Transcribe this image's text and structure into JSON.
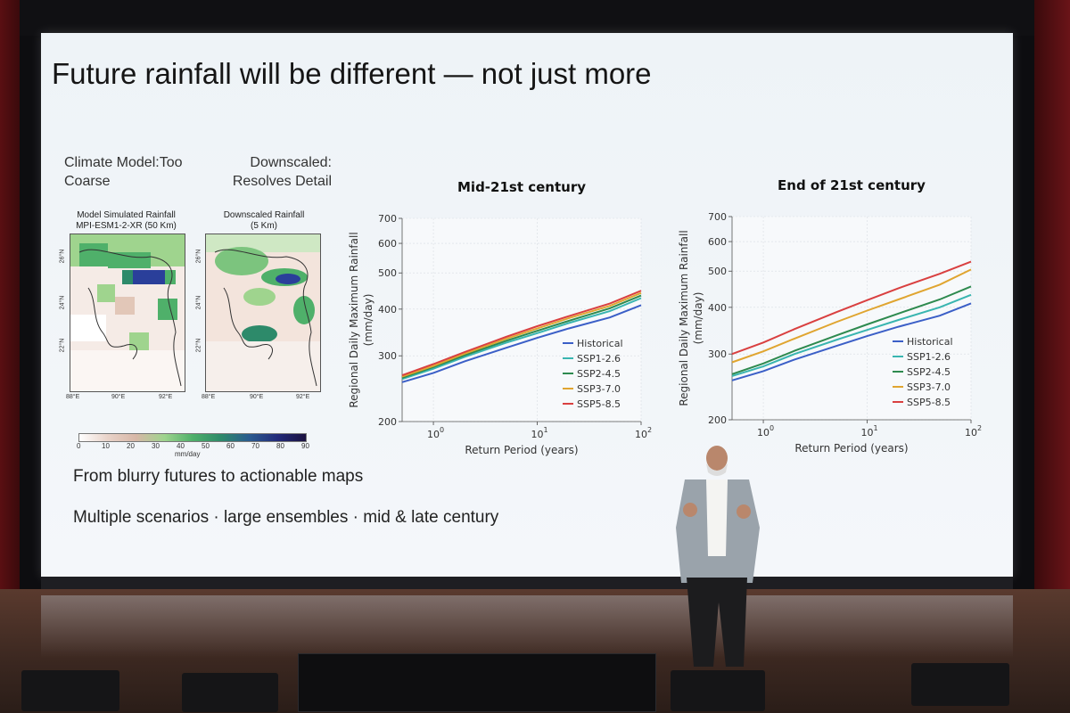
{
  "slide": {
    "title": "Future rainfall will be different — not just more",
    "left_labels": {
      "climate_model": "Climate Model:Too\nCoarse",
      "downscaled": "Downscaled:\nResolves Detail"
    },
    "map1_title": "Model Simulated Rainfall\nMPI-ESM1-2-XR (50 Km)",
    "map2_title": "Downscaled Rainfall\n(5 Km)",
    "map_x_ticks": [
      "88°E",
      "90°E",
      "92°E"
    ],
    "map_y_ticks": [
      "26°N",
      "24°N",
      "22°N"
    ],
    "colorbar_ticks": [
      "0",
      "10",
      "20",
      "30",
      "40",
      "50",
      "60",
      "70",
      "80",
      "90"
    ],
    "colorbar_unit": "mm/day",
    "bullets": [
      "From blurry futures to actionable maps",
      "Multiple scenarios · large ensembles · mid & late century"
    ]
  },
  "chart_data": [
    {
      "type": "line",
      "title": "Mid-21st century",
      "xlabel": "Return Period (years)",
      "ylabel": "Regional Daily Maximum Rainfall (mm/day)",
      "xscale": "log",
      "yscale": "log",
      "xlim": [
        0.5,
        100
      ],
      "ylim": [
        200,
        700
      ],
      "x_ticks": [
        "10^0",
        "10^1",
        "10^2"
      ],
      "y_ticks": [
        200,
        300,
        400,
        500,
        600,
        700
      ],
      "legend_position": "bottom-right",
      "x": [
        0.5,
        1,
        2,
        5,
        10,
        20,
        50,
        100
      ],
      "series": [
        {
          "name": "Historical",
          "color": "#3b5fc7",
          "values": [
            255,
            270,
            290,
            315,
            335,
            355,
            380,
            410
          ]
        },
        {
          "name": "SSP1-2.6",
          "color": "#39b5b0",
          "values": [
            260,
            277,
            298,
            325,
            345,
            367,
            395,
            428
          ]
        },
        {
          "name": "SSP2-4.5",
          "color": "#2e8a4f",
          "values": [
            262,
            280,
            301,
            329,
            350,
            372,
            402,
            435
          ]
        },
        {
          "name": "SSP3-7.0",
          "color": "#e0a530",
          "values": [
            264,
            282,
            304,
            333,
            355,
            378,
            408,
            442
          ]
        },
        {
          "name": "SSP5-8.5",
          "color": "#d94040",
          "values": [
            266,
            285,
            307,
            337,
            360,
            383,
            414,
            448
          ]
        }
      ],
      "grid": true
    },
    {
      "type": "line",
      "title": "End of 21st century",
      "xlabel": "Return Period (years)",
      "ylabel": "Regional Daily Maximum Rainfall (mm/day)",
      "xscale": "log",
      "yscale": "log",
      "xlim": [
        0.5,
        100
      ],
      "ylim": [
        200,
        700
      ],
      "x_ticks": [
        "10^0",
        "10^1",
        "10^2"
      ],
      "y_ticks": [
        200,
        300,
        400,
        500,
        600,
        700
      ],
      "legend_position": "bottom-right",
      "x": [
        0.5,
        1,
        2,
        5,
        10,
        20,
        50,
        100
      ],
      "series": [
        {
          "name": "Historical",
          "color": "#3b5fc7",
          "values": [
            255,
            270,
            290,
            315,
            335,
            355,
            380,
            410
          ]
        },
        {
          "name": "SSP1-2.6",
          "color": "#39b5b0",
          "values": [
            262,
            278,
            300,
            327,
            348,
            370,
            400,
            432
          ]
        },
        {
          "name": "SSP2-4.5",
          "color": "#2e8a4f",
          "values": [
            265,
            283,
            306,
            336,
            360,
            385,
            420,
            455
          ]
        },
        {
          "name": "SSP3-7.0",
          "color": "#e0a530",
          "values": [
            285,
            305,
            330,
            365,
            392,
            420,
            460,
            505
          ]
        },
        {
          "name": "SSP5-8.5",
          "color": "#d94040",
          "values": [
            300,
            322,
            350,
            388,
            418,
            450,
            492,
            530
          ]
        }
      ],
      "grid": true
    }
  ]
}
